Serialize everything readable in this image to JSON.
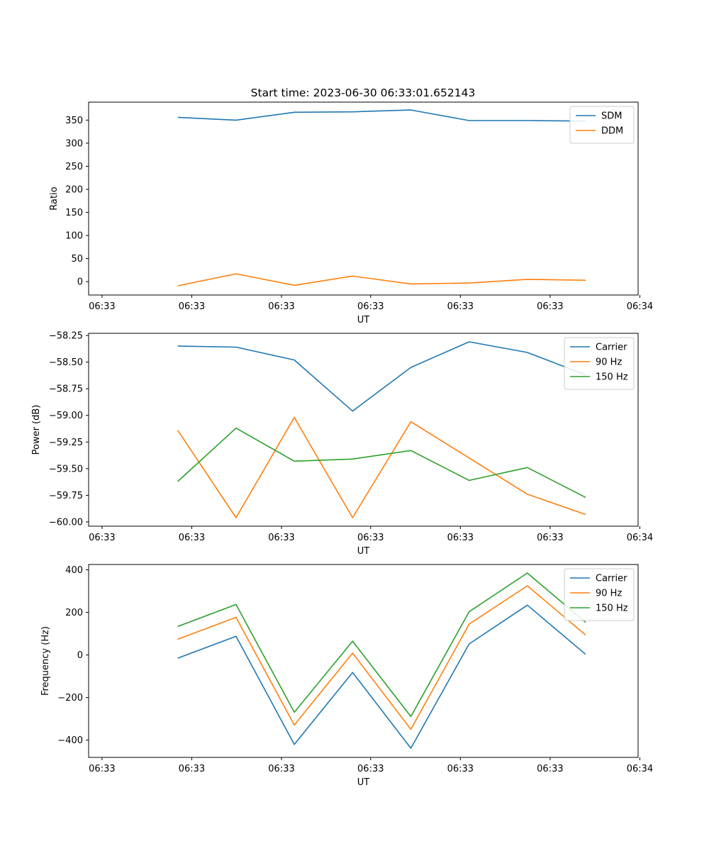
{
  "title": "Start time: 2023-06-30 06:33:01.652143",
  "colors": {
    "blue": "#1f77b4",
    "orange": "#ff7f0e",
    "green": "#2ca02c"
  },
  "chart_data": [
    {
      "type": "line",
      "ylabel": "Ratio",
      "xlabel": "UT",
      "x_tick_labels": [
        "06:33",
        "06:33",
        "06:33",
        "06:33",
        "06:33",
        "06:33",
        "06:34"
      ],
      "y_ticks": [
        0,
        50,
        100,
        150,
        200,
        250,
        300,
        350
      ],
      "ylim": [
        -29,
        389
      ],
      "grid": false,
      "legend": "top-right",
      "x": [
        1,
        2,
        3,
        4,
        5,
        6,
        7,
        8
      ],
      "series": [
        {
          "name": "SDM",
          "color": "#1f77b4",
          "values": [
            356,
            350,
            367,
            368,
            372,
            349,
            349,
            348
          ]
        },
        {
          "name": "DDM",
          "color": "#ff7f0e",
          "values": [
            -9,
            17,
            -8,
            12,
            -5,
            -3,
            5,
            3
          ]
        }
      ]
    },
    {
      "type": "line",
      "ylabel": "Power (dB)",
      "xlabel": "UT",
      "x_tick_labels": [
        "06:33",
        "06:33",
        "06:33",
        "06:33",
        "06:33",
        "06:33",
        "06:34"
      ],
      "y_ticks": [
        -60.0,
        -59.75,
        -59.5,
        -59.25,
        -59.0,
        -58.75,
        -58.5,
        -58.25
      ],
      "y_tick_labels": [
        "−60.00",
        "−59.75",
        "−59.50",
        "−59.25",
        "−59.00",
        "−58.75",
        "−58.50",
        "−58.25"
      ],
      "ylim": [
        -60.04,
        -58.23
      ],
      "grid": false,
      "legend": "top-right",
      "x": [
        1,
        2,
        3,
        4,
        5,
        6,
        7,
        8
      ],
      "series": [
        {
          "name": "Carrier",
          "color": "#1f77b4",
          "values": [
            -58.35,
            -58.36,
            -58.48,
            -58.96,
            -58.55,
            -58.31,
            -58.41,
            -58.62
          ]
        },
        {
          "name": "90 Hz",
          "color": "#ff7f0e",
          "values": [
            -59.14,
            -59.96,
            -59.02,
            -59.96,
            -59.06,
            -59.4,
            -59.74,
            -59.93
          ]
        },
        {
          "name": "150 Hz",
          "color": "#2ca02c",
          "values": [
            -59.62,
            -59.12,
            -59.43,
            -59.41,
            -59.33,
            -59.61,
            -59.49,
            -59.77
          ]
        }
      ]
    },
    {
      "type": "line",
      "ylabel": "Frequency (Hz)",
      "xlabel": "UT",
      "x_tick_labels": [
        "06:33",
        "06:33",
        "06:33",
        "06:33",
        "06:33",
        "06:33",
        "06:34"
      ],
      "y_ticks": [
        -400,
        -200,
        0,
        200,
        400
      ],
      "y_tick_labels": [
        "−400",
        "−200",
        "0",
        "200",
        "400"
      ],
      "ylim": [
        -481,
        425
      ],
      "grid": false,
      "legend": "top-right",
      "x": [
        1,
        2,
        3,
        4,
        5,
        6,
        7,
        8
      ],
      "series": [
        {
          "name": "Carrier",
          "color": "#1f77b4",
          "values": [
            -15,
            88,
            -420,
            -82,
            -438,
            52,
            234,
            3
          ]
        },
        {
          "name": "90 Hz",
          "color": "#ff7f0e",
          "values": [
            74,
            177,
            -329,
            9,
            -349,
            145,
            325,
            94
          ]
        },
        {
          "name": "150 Hz",
          "color": "#2ca02c",
          "values": [
            134,
            237,
            -269,
            65,
            -289,
            203,
            385,
            153
          ]
        }
      ]
    }
  ]
}
